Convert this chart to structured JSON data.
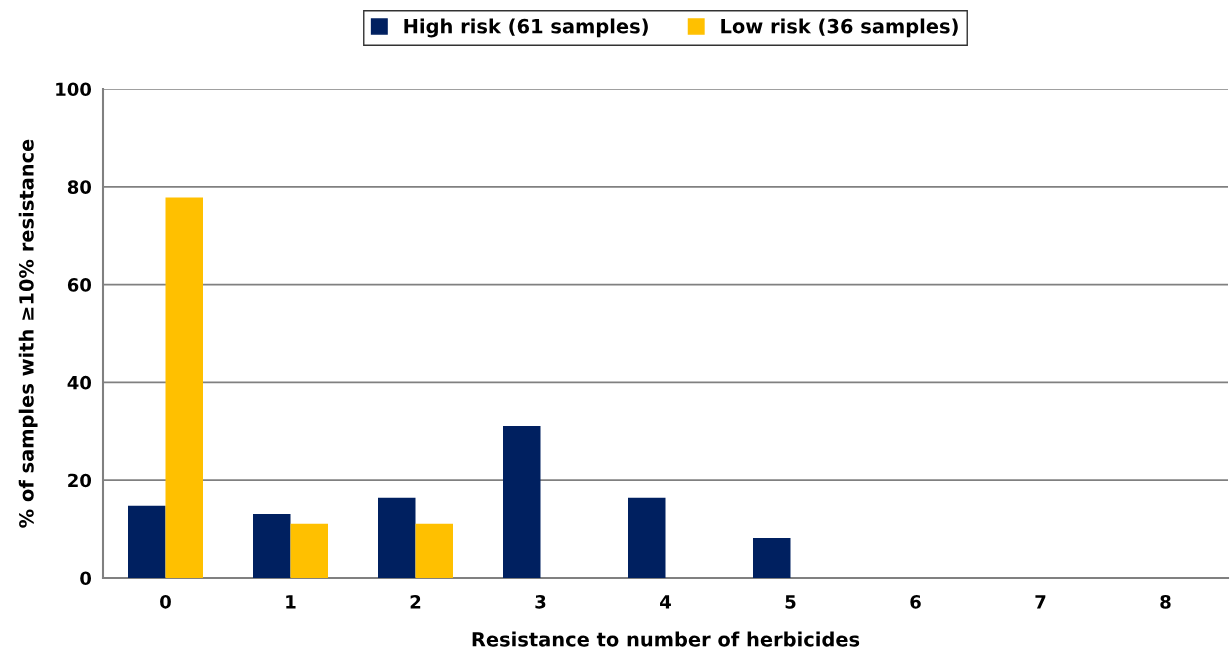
{
  "chart_data": {
    "type": "bar",
    "xlabel": "Resistance to number of herbicides",
    "ylabel": "% of samples with ≥10% resistance",
    "categories": [
      "0",
      "1",
      "2",
      "3",
      "4",
      "5",
      "6",
      "7",
      "8"
    ],
    "series": [
      {
        "name": "High risk (61 samples)",
        "color": "#002060",
        "values": [
          14.8,
          13.1,
          16.4,
          31.1,
          16.4,
          8.2,
          0,
          0,
          0
        ]
      },
      {
        "name": "Low risk (36 samples)",
        "color": "#ffc000",
        "values": [
          77.8,
          11.1,
          11.1,
          0,
          0,
          0,
          0,
          0,
          0
        ]
      }
    ],
    "ylim": [
      0,
      100
    ],
    "yticks": [
      0,
      20,
      40,
      60,
      80,
      100
    ],
    "grid": "y",
    "legend": "top"
  }
}
